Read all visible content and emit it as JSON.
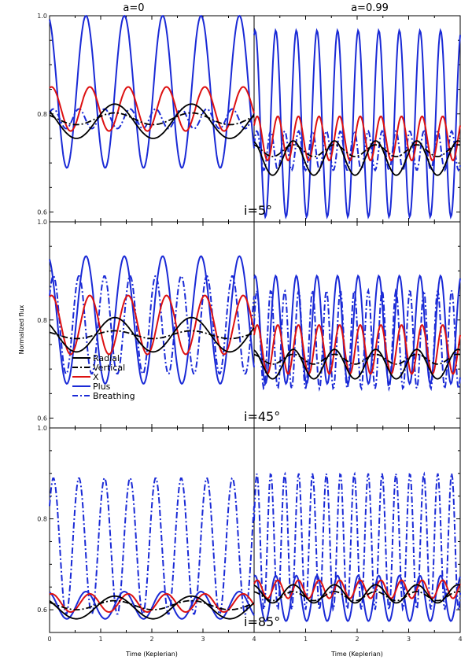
{
  "chart_data": {
    "type": "line",
    "column_titles": [
      "a=0",
      "a=0.99"
    ],
    "row_labels": [
      "i=5°",
      "i=45°",
      "i=85°"
    ],
    "xlabel": "Time (Keplerian)",
    "ylabel": "Normalized flux",
    "xlim": [
      0,
      4
    ],
    "x_tick_labels": [
      "0",
      "1",
      "2",
      "3",
      "4"
    ],
    "y_tick_labels": [
      "1.0",
      "0.8",
      "0.6"
    ],
    "rows": [
      {
        "ylim": [
          0.58,
          1.0
        ],
        "y_ticks": [
          1.0,
          0.8,
          0.6
        ]
      },
      {
        "ylim": [
          0.58,
          1.0
        ],
        "y_ticks": [
          1.0,
          0.8,
          0.6
        ]
      },
      {
        "ylim": [
          0.55,
          1.0
        ],
        "y_ticks": [
          1.0,
          0.8,
          0.6
        ]
      }
    ],
    "legend": {
      "placement": "middle-left panel, lower-left",
      "entries": [
        {
          "name": "Radial",
          "color": "#000000",
          "dash": "solid"
        },
        {
          "name": "Vertical",
          "color": "#000000",
          "dash": "dashdot"
        },
        {
          "name": "X",
          "color": "#dd1111",
          "dash": "solid"
        },
        {
          "name": "Plus",
          "color": "#1a2ad6",
          "dash": "solid"
        },
        {
          "name": "Breathing",
          "color": "#1a2ad6",
          "dash": "dashdot"
        }
      ]
    },
    "series_models": [
      {
        "row": 0,
        "col": 0,
        "series": [
          {
            "name": "Radial",
            "mean": 0.785,
            "amp": 0.035,
            "period": 1.5,
            "phase": 0.4
          },
          {
            "name": "Vertical",
            "mean": 0.79,
            "amp": 0.012,
            "period": 1.5,
            "phase": 0.4
          },
          {
            "name": "X",
            "mean": 0.81,
            "amp": 0.045,
            "period": 0.75,
            "phase": 0.2
          },
          {
            "name": "Plus",
            "mean": 0.845,
            "amp": 0.155,
            "period": 0.75,
            "phase": 0.3
          },
          {
            "name": "Breathing",
            "mean": 0.79,
            "amp": 0.02,
            "period": 0.5,
            "phase": 0.1
          }
        ]
      },
      {
        "row": 0,
        "col": 1,
        "series": [
          {
            "name": "Radial",
            "mean": 0.71,
            "amp": 0.035,
            "period": 0.8,
            "phase": 0.3
          },
          {
            "name": "Vertical",
            "mean": 0.725,
            "amp": 0.012,
            "period": 0.8,
            "phase": 0.3
          },
          {
            "name": "X",
            "mean": 0.75,
            "amp": 0.045,
            "period": 0.4,
            "phase": 0.1
          },
          {
            "name": "Plus",
            "mean": 0.78,
            "amp": 0.19,
            "period": 0.4,
            "phase": 0.2
          },
          {
            "name": "Breathing",
            "mean": 0.725,
            "amp": 0.04,
            "period": 0.27,
            "phase": 0.05
          }
        ]
      },
      {
        "row": 1,
        "col": 0,
        "series": [
          {
            "name": "Radial",
            "mean": 0.77,
            "amp": 0.035,
            "period": 1.5,
            "phase": 0.4
          },
          {
            "name": "Vertical",
            "mean": 0.77,
            "amp": 0.008,
            "period": 1.5,
            "phase": 0.4
          },
          {
            "name": "X",
            "mean": 0.79,
            "amp": 0.06,
            "period": 0.75,
            "phase": 0.2
          },
          {
            "name": "Plus",
            "mean": 0.8,
            "amp": 0.13,
            "period": 0.75,
            "phase": 0.3
          },
          {
            "name": "Breathing",
            "mean": 0.79,
            "amp": 0.1,
            "period": 0.5,
            "phase": 0.1
          }
        ]
      },
      {
        "row": 1,
        "col": 1,
        "series": [
          {
            "name": "Radial",
            "mean": 0.71,
            "amp": 0.03,
            "period": 0.8,
            "phase": 0.3
          },
          {
            "name": "Vertical",
            "mean": 0.72,
            "amp": 0.01,
            "period": 0.8,
            "phase": 0.3
          },
          {
            "name": "X",
            "mean": 0.74,
            "amp": 0.05,
            "period": 0.4,
            "phase": 0.1
          },
          {
            "name": "Plus",
            "mean": 0.78,
            "amp": 0.11,
            "period": 0.4,
            "phase": 0.2
          },
          {
            "name": "Breathing",
            "mean": 0.76,
            "amp": 0.1,
            "period": 0.27,
            "phase": 0.05
          }
        ]
      },
      {
        "row": 2,
        "col": 0,
        "series": [
          {
            "name": "Radial",
            "mean": 0.605,
            "amp": 0.025,
            "period": 1.5,
            "phase": 0.4
          },
          {
            "name": "Vertical",
            "mean": 0.61,
            "amp": 0.01,
            "period": 1.5,
            "phase": 0.4
          },
          {
            "name": "X",
            "mean": 0.615,
            "amp": 0.02,
            "period": 0.75,
            "phase": 0.2
          },
          {
            "name": "Plus",
            "mean": 0.61,
            "amp": 0.03,
            "period": 0.75,
            "phase": 0.3
          },
          {
            "name": "Breathing",
            "mean": 0.74,
            "amp": 0.15,
            "period": 0.5,
            "phase": 0.1
          }
        ]
      },
      {
        "row": 2,
        "col": 1,
        "series": [
          {
            "name": "Radial",
            "mean": 0.635,
            "amp": 0.02,
            "period": 0.8,
            "phase": 0.3
          },
          {
            "name": "Vertical",
            "mean": 0.63,
            "amp": 0.01,
            "period": 0.8,
            "phase": 0.3
          },
          {
            "name": "X",
            "mean": 0.645,
            "amp": 0.02,
            "period": 0.4,
            "phase": 0.1
          },
          {
            "name": "Plus",
            "mean": 0.625,
            "amp": 0.05,
            "period": 0.4,
            "phase": 0.2
          },
          {
            "name": "Breathing",
            "mean": 0.75,
            "amp": 0.15,
            "period": 0.27,
            "phase": 0.05
          }
        ]
      }
    ]
  }
}
